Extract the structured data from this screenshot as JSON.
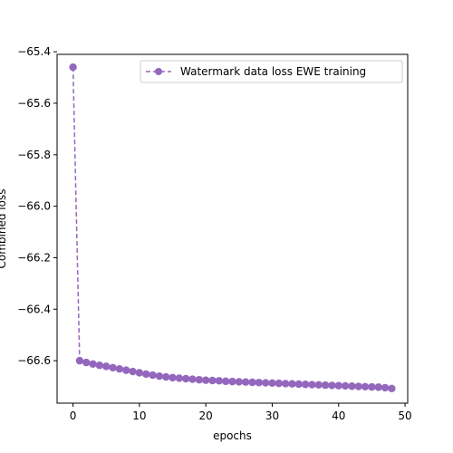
{
  "chart_data": {
    "type": "line",
    "title": "",
    "xlabel": "epochs",
    "ylabel": "Combined loss",
    "xlim": [
      -2.4,
      50.4
    ],
    "ylim": [
      -66.765,
      -65.41
    ],
    "xticks": [
      0,
      10,
      20,
      30,
      40,
      50
    ],
    "xtick_labels": [
      "0",
      "10",
      "20",
      "30",
      "40",
      "50"
    ],
    "yticks": [
      -66.6,
      -66.4,
      -66.2,
      -66.0,
      -65.8,
      -65.6,
      -65.4
    ],
    "ytick_labels": [
      "−66.6",
      "−66.4",
      "−66.2",
      "−66.0",
      "−65.8",
      "−65.6",
      "−65.4"
    ],
    "grid": false,
    "legend_position": "top-right",
    "series": [
      {
        "name": "Watermark data loss EWE training",
        "color": "#9467bd",
        "linestyle": "dashed",
        "marker": "circle",
        "x": [
          0,
          1,
          2,
          3,
          4,
          5,
          6,
          7,
          8,
          9,
          10,
          11,
          12,
          13,
          14,
          15,
          16,
          17,
          18,
          19,
          20,
          21,
          22,
          23,
          24,
          25,
          26,
          27,
          28,
          29,
          30,
          31,
          32,
          33,
          34,
          35,
          36,
          37,
          38,
          39,
          40,
          41,
          42,
          43,
          44,
          45,
          46,
          47,
          48
        ],
        "values": [
          -65.46,
          -66.6,
          -66.607,
          -66.613,
          -66.618,
          -66.622,
          -66.627,
          -66.632,
          -66.637,
          -66.642,
          -66.647,
          -66.652,
          -66.656,
          -66.66,
          -66.663,
          -66.666,
          -66.668,
          -66.67,
          -66.672,
          -66.674,
          -66.676,
          -66.677,
          -66.678,
          -66.68,
          -66.681,
          -66.682,
          -66.683,
          -66.684,
          -66.685,
          -66.686,
          -66.687,
          -66.688,
          -66.689,
          -66.69,
          -66.691,
          -66.692,
          -66.693,
          -66.694,
          -66.695,
          -66.696,
          -66.697,
          -66.698,
          -66.699,
          -66.7,
          -66.701,
          -66.702,
          -66.703,
          -66.705,
          -66.708
        ]
      }
    ]
  }
}
